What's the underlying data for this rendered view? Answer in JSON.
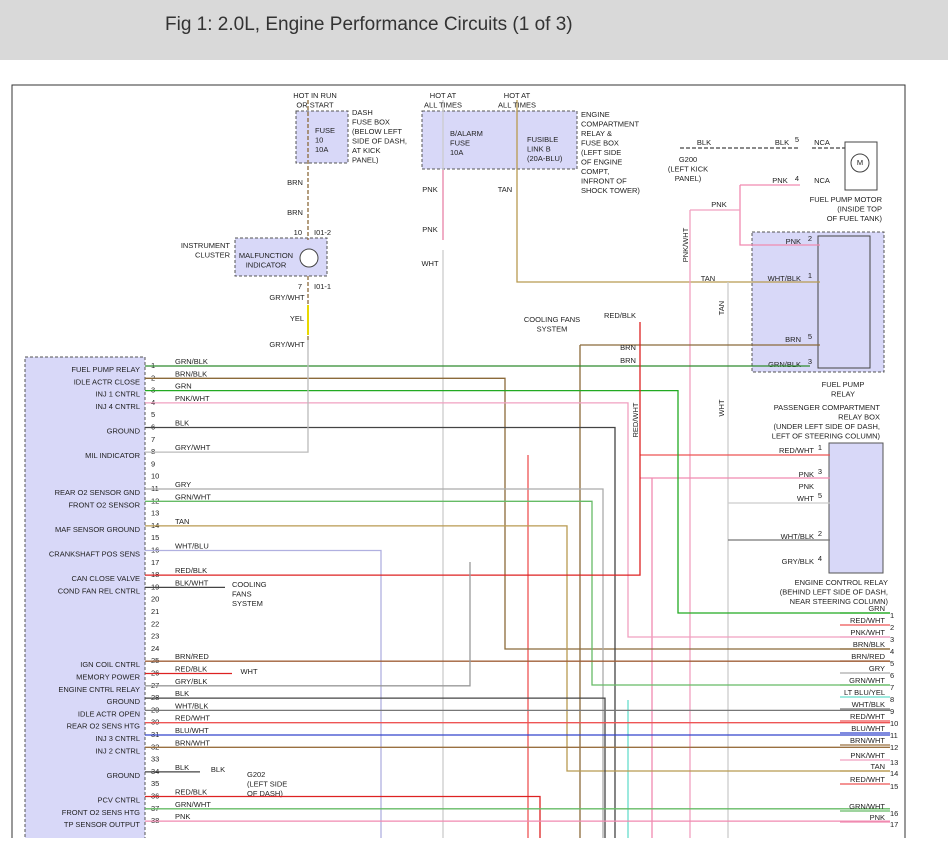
{
  "header": {
    "title": "Fig 1: 2.0L, Engine Performance Circuits (1 of 3)"
  },
  "labels": {
    "hot_run": [
      "HOT IN RUN",
      "OR START"
    ],
    "dash_fuse_box": [
      "DASH",
      "FUSE BOX",
      "(BELOW LEFT",
      "SIDE OF DASH,",
      "AT KICK",
      "PANEL)"
    ],
    "fuse10": [
      "FUSE",
      "10",
      "10A"
    ],
    "brn_a": "BRN",
    "brn_b": "BRN",
    "pin_10": "10",
    "i01_2": "I01-2",
    "instrument_cluster": [
      "INSTRUMENT",
      "CLUSTER"
    ],
    "malfunction": [
      "MALFUNCTION",
      "INDICATOR"
    ],
    "pin_7": "7",
    "i01_1": "I01-1",
    "gry_wht_a": "GRY/WHT",
    "yel": "YEL",
    "gry_wht_b": "GRY/WHT",
    "hot_all_a": [
      "HOT AT",
      "ALL TIMES"
    ],
    "hot_all_b": [
      "HOT AT",
      "ALL TIMES"
    ],
    "balarm": [
      "B/ALARM",
      "FUSE",
      "10A"
    ],
    "fusible": [
      "FUSIBLE",
      "LINK B",
      "(20A-BLU)"
    ],
    "engine_box": [
      "ENGINE",
      "COMPARTMENT",
      "RELAY &",
      "FUSE BOX",
      "(LEFT SIDE",
      "OF ENGINE",
      "COMPT,",
      "INFRONT OF",
      "SHOCK TOWER)"
    ],
    "pnk_a": "PNK",
    "pnk_b": "PNK",
    "wht_a": "WHT",
    "tan_a": "TAN",
    "blk_g200": "BLK",
    "g200": [
      "G200",
      "(LEFT KICK",
      "PANEL)"
    ],
    "blk_m": "BLK",
    "pin_m5": "5",
    "nca_a": "NCA",
    "pnk_m": "PNK",
    "pin_m4": "4",
    "nca_b": "NCA",
    "motor_m": "M",
    "fuel_pump_motor": [
      "FUEL PUMP MOTOR",
      "(INSIDE TOP",
      "OF FUEL TANK)"
    ],
    "pnk_c": "PNK",
    "pnk_wht_v": "PNK/WHT",
    "fpr_pnk": "PNK",
    "fpr_2": "2",
    "fpr_whtblk": "WHT/BLK",
    "fpr_1": "1",
    "tan_b": "TAN",
    "tan_v": "TAN",
    "fpr_brn": "BRN",
    "fpr_5": "5",
    "fpr_grnblk": "GRN/BLK",
    "fpr_3": "3",
    "fuel_pump_relay": [
      "FUEL PUMP",
      "RELAY"
    ],
    "pass_box": [
      "PASSENGER COMPARTMENT",
      "RELAY BOX",
      "(UNDER LEFT SIDE OF DASH,",
      "LEFT OF STEERING COLUMN)"
    ],
    "red_blk_c": "RED/BLK",
    "cooling_a": [
      "COOLING FANS",
      "SYSTEM"
    ],
    "brn_c": "BRN",
    "brn_d": "BRN",
    "red_wht_v": "RED/WHT",
    "wht_v": "WHT",
    "ecr_redwht": "RED/WHT",
    "ecr_1": "1",
    "ecr_pnk3": "PNK",
    "ecr_3": "3",
    "ecr_pnk": "PNK",
    "ecr_wht": "WHT",
    "ecr_5": "5",
    "ecr_whtblk": "WHT/BLK",
    "ecr_2": "2",
    "ecr_gryblk": "GRY/BLK",
    "ecr_4": "4",
    "ecr_title": [
      "ENGINE CONTROL RELAY",
      "(BEHIND LEFT SIDE OF DASH,",
      "NEAR STEERING COLUMN)"
    ],
    "cooling_b": [
      "COOLING",
      "FANS",
      "SYSTEM"
    ],
    "wht_c": "WHT",
    "blk_g202": "BLK",
    "g202": [
      "G202",
      "(LEFT SIDE",
      "OF DASH)"
    ]
  },
  "ecm_pins": [
    {
      "num": "1",
      "label": "FUEL PUMP RELAY",
      "wire": "GRN/BLK",
      "color": "#2e8b2e"
    },
    {
      "num": "2",
      "label": "IDLE ACTR CLOSE",
      "wire": "BRN/BLK",
      "color": "#8b6a3a"
    },
    {
      "num": "3",
      "label": "INJ 1 CNTRL",
      "wire": "GRN",
      "color": "#22aa22"
    },
    {
      "num": "4",
      "label": "INJ 4 CNTRL",
      "wire": "PNK/WHT",
      "color": "#f0a0c0"
    },
    {
      "num": "5"
    },
    {
      "num": "6",
      "label": "GROUND",
      "wire": "BLK",
      "color": "#444"
    },
    {
      "num": "7"
    },
    {
      "num": "8",
      "label": "MIL INDICATOR",
      "wire": "GRY/WHT",
      "color": "#bbb"
    },
    {
      "num": "9"
    },
    {
      "num": "10"
    },
    {
      "num": "11",
      "label": "REAR O2 SENSOR GND",
      "wire": "GRY",
      "color": "#aaa"
    },
    {
      "num": "12",
      "label": "FRONT O2 SENSOR",
      "wire": "GRN/WHT",
      "color": "#66bb66"
    },
    {
      "num": "13"
    },
    {
      "num": "14",
      "label": "MAF SENSOR GROUND",
      "wire": "TAN",
      "color": "#b89a50"
    },
    {
      "num": "15"
    },
    {
      "num": "16",
      "label": "CRANKSHAFT POS SENS",
      "wire": "WHT/BLU",
      "color": "#b0b0e0"
    },
    {
      "num": "17"
    },
    {
      "num": "18",
      "label": "CAN CLOSE VALVE",
      "wire": "RED/BLK",
      "color": "#d22"
    },
    {
      "num": "19",
      "label": "COND FAN REL CNTRL",
      "wire": "BLK/WHT",
      "color": "#444"
    },
    {
      "num": "20"
    },
    {
      "num": "21"
    },
    {
      "num": "22"
    },
    {
      "num": "23"
    },
    {
      "num": "24"
    },
    {
      "num": "25",
      "label": "IGN COIL CNTRL",
      "wire": "BRN/RED",
      "color": "#a0603a"
    },
    {
      "num": "26",
      "label": "MEMORY POWER",
      "wire": "RED/BLK",
      "color": "#d22"
    },
    {
      "num": "27",
      "label": "ENGINE CNTRL RELAY",
      "wire": "GRY/BLK",
      "color": "#999"
    },
    {
      "num": "28",
      "label": "GROUND",
      "wire": "BLK",
      "color": "#444"
    },
    {
      "num": "29",
      "label": "IDLE ACTR OPEN",
      "wire": "WHT/BLK",
      "color": "#777"
    },
    {
      "num": "30",
      "label": "REAR O2 SENS HTG",
      "wire": "RED/WHT",
      "color": "#e55"
    },
    {
      "num": "31",
      "label": "INJ 3 CNTRL",
      "wire": "BLU/WHT",
      "color": "#3344cc"
    },
    {
      "num": "32",
      "label": "INJ 2 CNTRL",
      "wire": "BRN/WHT",
      "color": "#9a7040"
    },
    {
      "num": "33"
    },
    {
      "num": "34",
      "label": "GROUND",
      "wire": "BLK",
      "color": "#444"
    },
    {
      "num": "35"
    },
    {
      "num": "36",
      "label": "PCV CNTRL",
      "wire": "RED/BLK",
      "color": "#d22"
    },
    {
      "num": "37",
      "label": "FRONT O2 SENS HTG",
      "wire": "GRN/WHT",
      "color": "#66bb66"
    },
    {
      "num": "38",
      "label": "TP SENSOR OUTPUT",
      "wire": "PNK",
      "color": "#f08ab0"
    }
  ],
  "right_pins": [
    {
      "num": "1",
      "wire": "GRN",
      "color": "#22aa22"
    },
    {
      "num": "2",
      "wire": "RED/WHT",
      "color": "#e55"
    },
    {
      "num": "3",
      "wire": "PNK/WHT",
      "color": "#f0a0c0"
    },
    {
      "num": "4",
      "wire": "BRN/BLK",
      "color": "#8b6a3a"
    },
    {
      "num": "5",
      "wire": "BRN/RED",
      "color": "#a0603a"
    },
    {
      "num": "6",
      "wire": "GRY",
      "color": "#aaa"
    },
    {
      "num": "7",
      "wire": "GRN/WHT",
      "color": "#66bb66"
    },
    {
      "num": "8",
      "wire": "LT BLU/YEL",
      "color": "#66ddcc"
    },
    {
      "num": "9",
      "wire": "WHT/BLK",
      "color": "#777"
    },
    {
      "num": "10",
      "wire": "RED/WHT",
      "color": "#e55"
    },
    {
      "num": "11",
      "wire": "BLU/WHT",
      "color": "#3344cc"
    },
    {
      "num": "12",
      "wire": "BRN/WHT",
      "color": "#9a7040"
    },
    {
      "num": "13",
      "wire": "PNK/WHT",
      "color": "#f0a0c0"
    },
    {
      "num": "14",
      "wire": "TAN",
      "color": "#b89a50"
    },
    {
      "num": "15",
      "wire": "RED/WHT",
      "color": "#e55"
    },
    {
      "num": "16",
      "wire": "GRN/WHT",
      "color": "#66bb66"
    },
    {
      "num": "17",
      "wire": "PNK",
      "color": "#f08ab0"
    }
  ]
}
